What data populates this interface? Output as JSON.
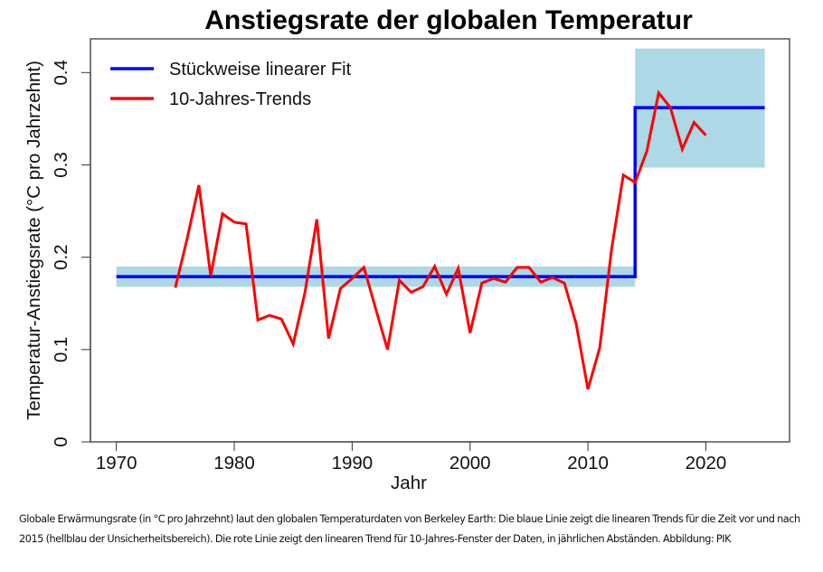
{
  "chart_data": {
    "type": "line",
    "title": "Anstiegsrate der globalen Temperatur",
    "xlabel": "Jahr",
    "ylabel": "Temperatur-Anstiegsrate (°C pro Jahrzehnt)",
    "xlim": [
      1967.8,
      2027.1
    ],
    "ylim": [
      0,
      0.4365
    ],
    "xticks": [
      1970,
      1980,
      1990,
      2000,
      2010,
      2020
    ],
    "xtick_labels": [
      "1970",
      "1980",
      "1990",
      "2000",
      "2010",
      "2020"
    ],
    "yticks": [
      0,
      0.1,
      0.2,
      0.3,
      0.4
    ],
    "ytick_labels": [
      "0",
      "0.1",
      "0.2",
      "0.3",
      "0.4"
    ],
    "grid": false,
    "legend_position": "top-left",
    "legend": [
      {
        "label": "Stückweise linearer Fit",
        "color": "#0000ff"
      },
      {
        "label": "10-Jahres-Trends",
        "color": "#ff0000"
      }
    ],
    "series": [
      {
        "name": "Stückweise linearer Fit",
        "color": "#0000ff",
        "kind": "step",
        "segments": [
          {
            "x_start": 1970,
            "x_end": 2014,
            "value": 0.179
          },
          {
            "x_start": 2014,
            "x_end": 2025,
            "value": 0.362
          }
        ]
      },
      {
        "name": "10-Jahres-Trends",
        "color": "#ff0000",
        "x": [
          1975,
          1976,
          1977,
          1978,
          1979,
          1980,
          1981,
          1982,
          1983,
          1984,
          1985,
          1986,
          1987,
          1988,
          1989,
          1990,
          1991,
          1992,
          1993,
          1994,
          1995,
          1996,
          1997,
          1998,
          1999,
          2000,
          2001,
          2002,
          2003,
          2004,
          2005,
          2006,
          2007,
          2008,
          2009,
          2010,
          2011,
          2012,
          2013,
          2014,
          2015,
          2016,
          2017,
          2018,
          2019,
          2020
        ],
        "y": [
          0.167,
          0.22,
          0.278,
          0.18,
          0.247,
          0.238,
          0.236,
          0.132,
          0.137,
          0.133,
          0.106,
          0.162,
          0.241,
          0.112,
          0.166,
          0.177,
          0.189,
          0.144,
          0.1,
          0.175,
          0.162,
          0.168,
          0.19,
          0.16,
          0.188,
          0.118,
          0.172,
          0.177,
          0.173,
          0.189,
          0.189,
          0.173,
          0.178,
          0.172,
          0.128,
          0.057,
          0.102,
          0.208,
          0.289,
          0.281,
          0.315,
          0.378,
          0.362,
          0.317,
          0.346,
          0.332
        ]
      }
    ],
    "uncertainty_bands": [
      {
        "name": "Unsicherheitsbereich vor 2015",
        "x_start": 1970,
        "x_end": 2014,
        "low": 0.168,
        "high": 0.19,
        "color": "#add8e6"
      },
      {
        "name": "Unsicherheitsbereich nach 2015",
        "x_start": 2014,
        "x_end": 2025,
        "low": 0.297,
        "high": 0.426,
        "color": "#add8e6"
      }
    ]
  },
  "caption": {
    "text": "Globale Erwärmungsrate (in °C pro Jahrzehnt) laut den globalen Temperaturdaten von Berkeley Earth: Die blaue Linie zeigt die linearen Trends für die Zeit vor und nach 2015 (hellblau der Unsicherheitsbereich). Die rote Linie zeigt den linearen Trend für 10-Jahres-Fenster der Daten, in jährlichen Abständen. Abbildung: PIK"
  }
}
